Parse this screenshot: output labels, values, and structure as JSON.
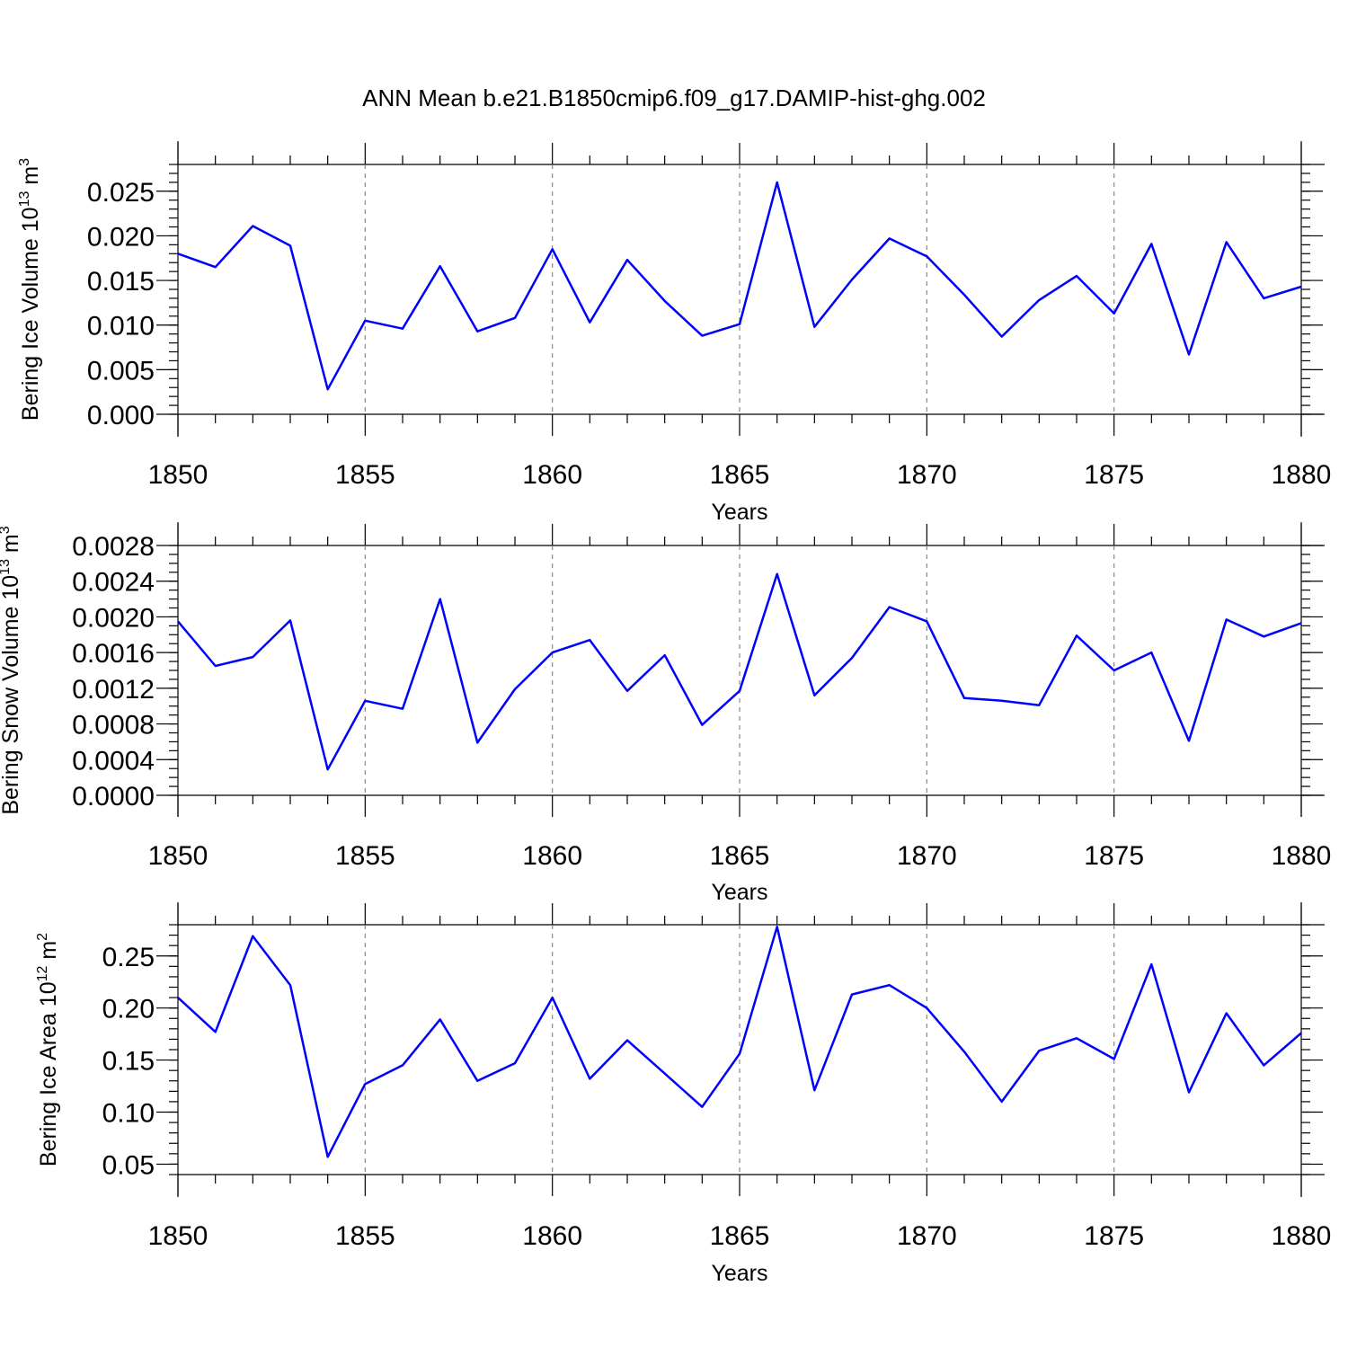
{
  "title": "ANN Mean b.e21.B1850cmip6.f09_g17.DAMIP-hist-ghg.002",
  "line_color": "#0000ff",
  "chart_data": [
    {
      "type": "line",
      "title": "ANN Mean b.e21.B1850cmip6.f09_g17.DAMIP-hist-ghg.002",
      "xlabel": "Years",
      "ylabel_main": "Bering Ice Volume 10",
      "ylabel_exp": "13",
      "ylabel_unit": " m",
      "ylabel_unit_exp": "3",
      "xlim": [
        1850,
        1880
      ],
      "ylim": [
        0.0,
        0.028
      ],
      "xticks": [
        1850,
        1855,
        1860,
        1865,
        1870,
        1875,
        1880
      ],
      "xtick_labels": [
        "1850",
        "1855",
        "1860",
        "1865",
        "1870",
        "1875",
        "1880"
      ],
      "yticks": [
        0.0,
        0.005,
        0.01,
        0.015,
        0.02,
        0.025
      ],
      "ytick_labels": [
        "0.000",
        "0.005",
        "0.010",
        "0.015",
        "0.020",
        "0.025"
      ],
      "yminor_step": 0.001,
      "grid": "dashed vertical at major x ticks",
      "x": [
        1850,
        1851,
        1852,
        1853,
        1854,
        1855,
        1856,
        1857,
        1858,
        1859,
        1860,
        1861,
        1862,
        1863,
        1864,
        1865,
        1866,
        1867,
        1868,
        1869,
        1870,
        1871,
        1872,
        1873,
        1874,
        1875,
        1876,
        1877,
        1878,
        1879,
        1880
      ],
      "values": [
        0.018,
        0.0165,
        0.0211,
        0.0189,
        0.0028,
        0.0105,
        0.0096,
        0.0166,
        0.0093,
        0.0108,
        0.0185,
        0.0103,
        0.0173,
        0.0127,
        0.0088,
        0.0101,
        0.026,
        0.0098,
        0.0151,
        0.0197,
        0.0177,
        0.0134,
        0.0087,
        0.0128,
        0.0155,
        0.0113,
        0.0191,
        0.0067,
        0.0193,
        0.013,
        0.0143
      ]
    },
    {
      "type": "line",
      "xlabel": "Years",
      "ylabel_main": "Bering Snow Volume 10",
      "ylabel_exp": "13",
      "ylabel_unit": " m",
      "ylabel_unit_exp": "3",
      "xlim": [
        1850,
        1880
      ],
      "ylim": [
        0.0,
        0.0028
      ],
      "xticks": [
        1850,
        1855,
        1860,
        1865,
        1870,
        1875,
        1880
      ],
      "xtick_labels": [
        "1850",
        "1855",
        "1860",
        "1865",
        "1870",
        "1875",
        "1880"
      ],
      "yticks": [
        0.0,
        0.0004,
        0.0008,
        0.0012,
        0.0016,
        0.002,
        0.0024,
        0.0028
      ],
      "ytick_labels": [
        "0.0000",
        "0.0004",
        "0.0008",
        "0.0012",
        "0.0016",
        "0.0020",
        "0.0024",
        "0.0028"
      ],
      "yminor_step": 0.0001,
      "grid": "dashed vertical at major x ticks",
      "x": [
        1850,
        1851,
        1852,
        1853,
        1854,
        1855,
        1856,
        1857,
        1858,
        1859,
        1860,
        1861,
        1862,
        1863,
        1864,
        1865,
        1866,
        1867,
        1868,
        1869,
        1870,
        1871,
        1872,
        1873,
        1874,
        1875,
        1876,
        1877,
        1878,
        1879,
        1880
      ],
      "values": [
        0.00195,
        0.00145,
        0.00155,
        0.00196,
        0.00029,
        0.00106,
        0.00097,
        0.0022,
        0.00059,
        0.00119,
        0.0016,
        0.00174,
        0.00117,
        0.00157,
        0.00079,
        0.00117,
        0.00248,
        0.00112,
        0.00154,
        0.00211,
        0.00195,
        0.00109,
        0.00106,
        0.00101,
        0.00179,
        0.0014,
        0.0016,
        0.00061,
        0.00197,
        0.00178,
        0.00193
      ]
    },
    {
      "type": "line",
      "xlabel": "Years",
      "ylabel_main": "Bering Ice Area 10",
      "ylabel_exp": "12",
      "ylabel_unit": " m",
      "ylabel_unit_exp": "2",
      "xlim": [
        1850,
        1880
      ],
      "ylim": [
        0.04,
        0.28
      ],
      "xticks": [
        1850,
        1855,
        1860,
        1865,
        1870,
        1875,
        1880
      ],
      "xtick_labels": [
        "1850",
        "1855",
        "1860",
        "1865",
        "1870",
        "1875",
        "1880"
      ],
      "yticks": [
        0.05,
        0.1,
        0.15,
        0.2,
        0.25
      ],
      "ytick_labels": [
        "0.05",
        "0.10",
        "0.15",
        "0.20",
        "0.25"
      ],
      "yminor_step": 0.01,
      "grid": "dashed vertical at major x ticks",
      "x": [
        1850,
        1851,
        1852,
        1853,
        1854,
        1855,
        1856,
        1857,
        1858,
        1859,
        1860,
        1861,
        1862,
        1863,
        1864,
        1865,
        1866,
        1867,
        1868,
        1869,
        1870,
        1871,
        1872,
        1873,
        1874,
        1875,
        1876,
        1877,
        1878,
        1879,
        1880
      ],
      "values": [
        0.21,
        0.177,
        0.269,
        0.222,
        0.057,
        0.127,
        0.145,
        0.189,
        0.13,
        0.147,
        0.21,
        0.132,
        0.169,
        0.137,
        0.105,
        0.156,
        0.278,
        0.121,
        0.213,
        0.222,
        0.2,
        0.158,
        0.11,
        0.159,
        0.171,
        0.151,
        0.242,
        0.119,
        0.195,
        0.145,
        0.176
      ]
    }
  ]
}
